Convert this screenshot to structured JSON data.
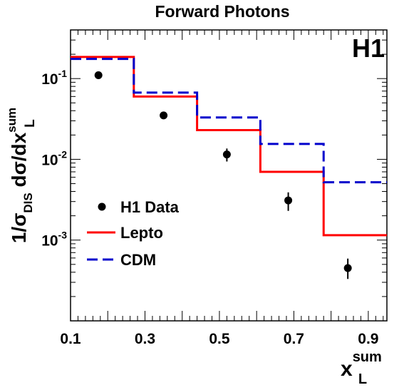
{
  "chart_data": {
    "type": "step",
    "title": "Forward Photons",
    "experiment_label": "H1",
    "ylabel": {
      "prefix": "1/σ",
      "prefix_sub": "DIS",
      "middle": " dσ/dx",
      "suffix_sup": "sum",
      "suffix_sub": "L"
    },
    "xlabel": {
      "base": "x",
      "sup": "sum",
      "sub": "L"
    },
    "x_ticks": [
      "0.1",
      "0.3",
      "0.5",
      "0.7",
      "0.9"
    ],
    "y_ticks": [
      {
        "base": "10",
        "exp": "-1"
      },
      {
        "base": "10",
        "exp": "-2"
      },
      {
        "base": "10",
        "exp": "-3"
      }
    ],
    "xlim": [
      0.1,
      0.95
    ],
    "ylim": [
      0.0001,
      0.4
    ],
    "yscale": "log",
    "bin_edges": [
      0.1,
      0.27,
      0.44,
      0.61,
      0.78,
      0.95
    ],
    "series": [
      {
        "name": "H1 Data",
        "kind": "points",
        "color": "#000000",
        "x": [
          0.175,
          0.35,
          0.52,
          0.685,
          0.845
        ],
        "y": [
          0.11,
          0.035,
          0.0115,
          0.0031,
          0.00045
        ],
        "yerr_low": [
          0.0065,
          0.0034,
          0.0021,
          0.0008,
          0.00012
        ],
        "yerr_high": [
          0.0065,
          0.0034,
          0.0021,
          0.0008,
          0.00014
        ]
      },
      {
        "name": "Lepto",
        "kind": "step",
        "color": "#ff0000",
        "style": "solid",
        "values": [
          0.185,
          0.06,
          0.023,
          0.007,
          0.00115
        ]
      },
      {
        "name": "CDM",
        "kind": "step",
        "color": "#0000cc",
        "style": "dashed",
        "values": [
          0.175,
          0.067,
          0.033,
          0.0155,
          0.0052
        ]
      }
    ],
    "legend_position": "left-middle"
  }
}
